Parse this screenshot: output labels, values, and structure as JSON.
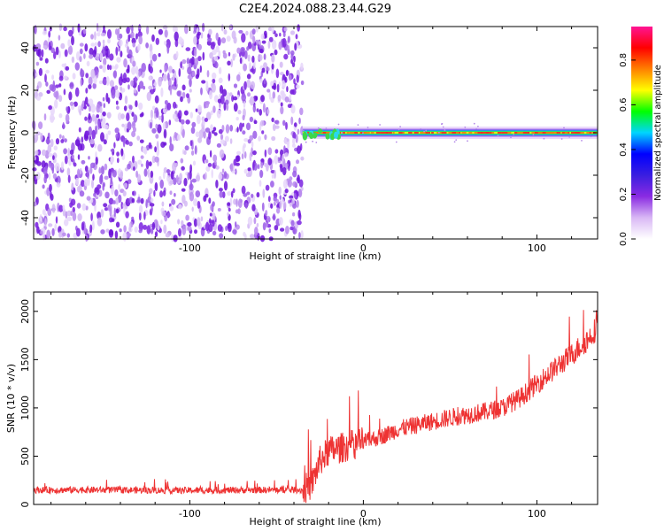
{
  "title": "C2E4.2024.088.23.44.G29",
  "colors": {
    "snr_line": "#ee3333",
    "scatter": "#8a2be2",
    "colormap": [
      "#ffffff",
      "#d9b8f5",
      "#8a2be2",
      "#3a1ee0",
      "#0000ff",
      "#00d5ff",
      "#00ff00",
      "#ffff00",
      "#ff8000",
      "#ff0000",
      "#ff1493"
    ]
  },
  "chart_data": [
    {
      "type": "heatmap",
      "name": "spectrogram",
      "xlabel": "Height of straight line (km)",
      "ylabel": "Frequency (Hz)",
      "xlim": [
        -190,
        135
      ],
      "ylim": [
        -50,
        50
      ],
      "xticks": [
        -100,
        0,
        100
      ],
      "yticks": [
        -40,
        -20,
        0,
        20,
        40
      ],
      "noise_region_x": [
        -190,
        -35
      ],
      "signal_region_x": [
        -35,
        135
      ],
      "signal_frequency_hz": 0,
      "colorbar": {
        "label": "Normalized spectral amplitude",
        "range": [
          0.0,
          0.95
        ],
        "ticks": [
          0.0,
          0.2,
          0.4,
          0.6,
          0.8
        ]
      }
    },
    {
      "type": "line",
      "name": "snr",
      "xlabel": "Height of straight line (km)",
      "ylabel": "SNR (10 * v/v)",
      "xlim": [
        -190,
        135
      ],
      "ylim": [
        0,
        2200
      ],
      "xticks": [
        -100,
        0,
        100
      ],
      "yticks": [
        0,
        500,
        1000,
        1500,
        2000
      ],
      "series": [
        {
          "x": [
            -190,
            -150,
            -100,
            -60,
            -35,
            -30,
            -25,
            -20,
            -10,
            0,
            10,
            20,
            30,
            40,
            50,
            60,
            70,
            80,
            90,
            100,
            110,
            120,
            130,
            135
          ],
          "y": [
            150,
            150,
            145,
            150,
            150,
            200,
            450,
            550,
            600,
            650,
            700,
            780,
            820,
            860,
            900,
            930,
            960,
            1000,
            1100,
            1250,
            1400,
            1550,
            1720,
            1850
          ]
        }
      ]
    }
  ]
}
